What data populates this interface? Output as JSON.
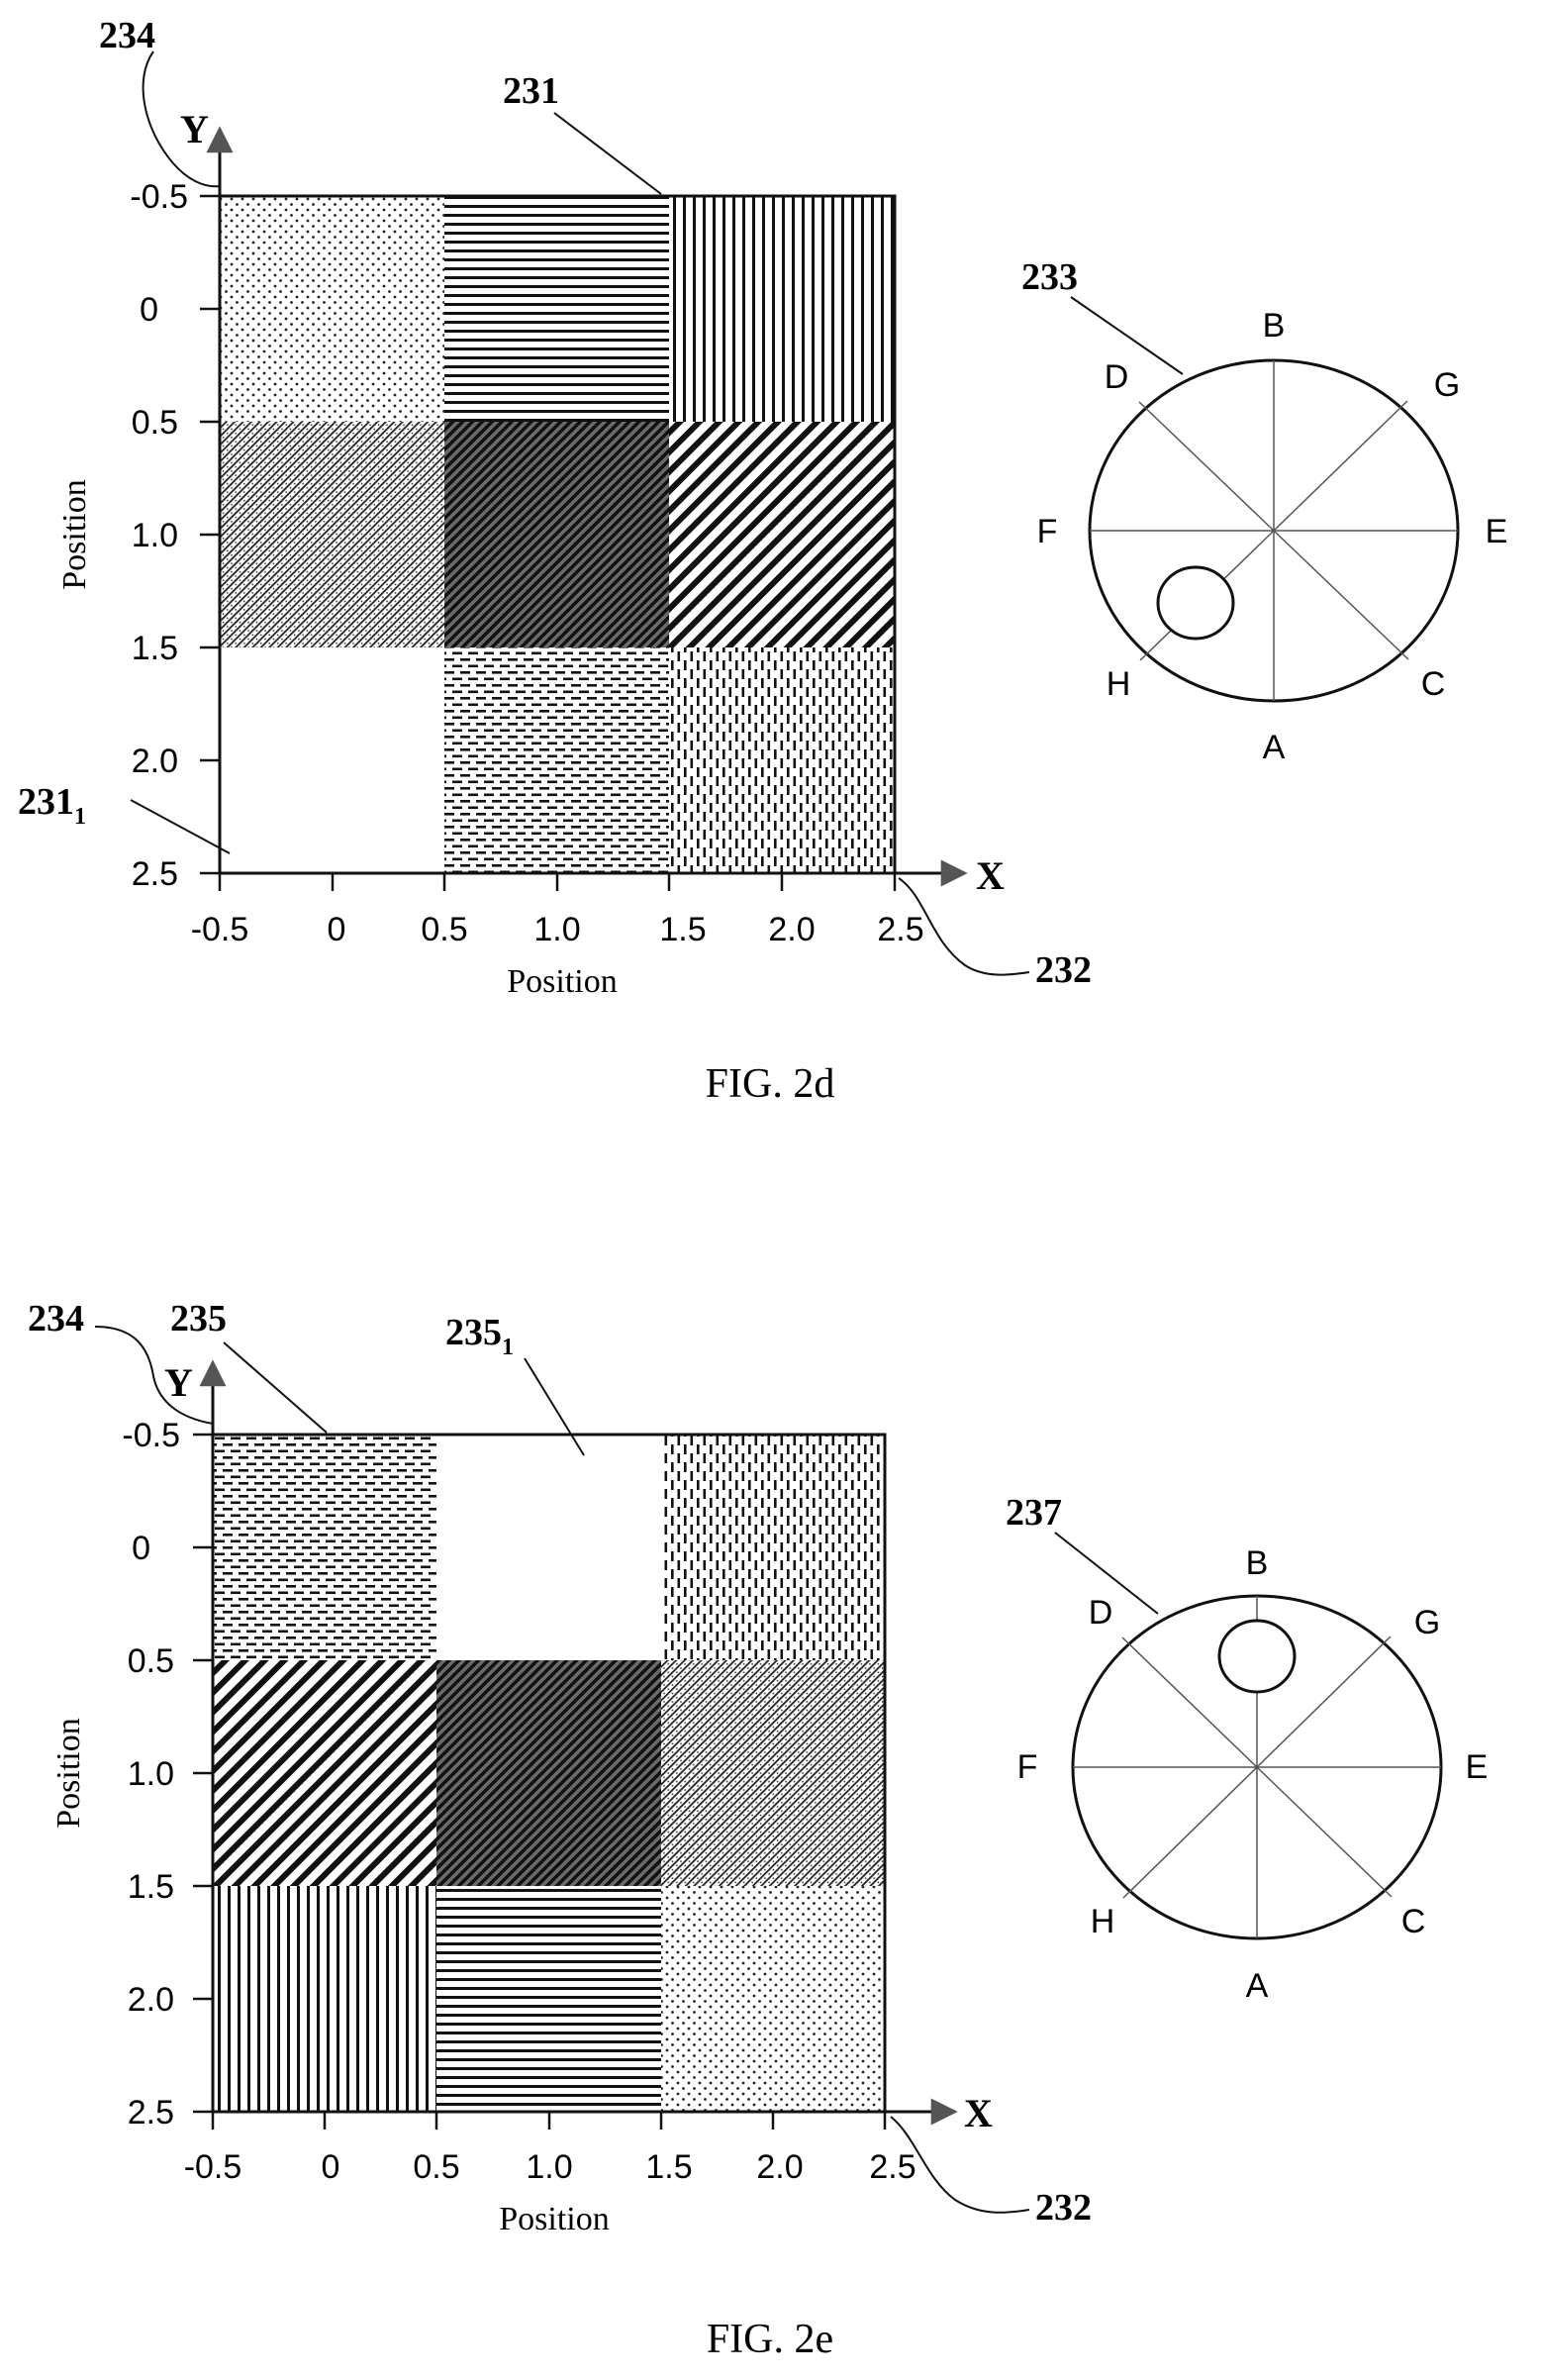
{
  "colors": {
    "ink": "#111111",
    "paper": "#ffffff"
  },
  "fig2d": {
    "caption": "FIG. 2d",
    "refs": {
      "y_axis": "234",
      "map": "231",
      "map_sub_main": "231",
      "map_sub_index": "1",
      "x_axis": "232",
      "pupil": "233"
    },
    "y_axis_letter": "Y",
    "x_axis_letter": "X",
    "x_title": "Position",
    "y_title": "Position",
    "y_ticks": [
      "-0.5",
      "0",
      "0.5",
      "1.0",
      "1.5",
      "2.0",
      "2.5"
    ],
    "x_ticks": [
      "-0.5",
      "0",
      "0.5",
      "1.0",
      "1.5",
      "2.0",
      "2.5"
    ],
    "grid_patterns": [
      [
        "fine-dots",
        "horizontal-lines",
        "vertical-lines"
      ],
      [
        "dense-diagonal",
        "dark-diagonal",
        "bold-diagonal"
      ],
      [
        "blank",
        "horizontal-dashes",
        "vertical-dashes"
      ]
    ],
    "pupil_points": {
      "top": "B",
      "top_right": "G",
      "right": "E",
      "bottom_right": "C",
      "bottom": "A",
      "bottom_left": "H",
      "left": "F",
      "top_left": "D"
    },
    "spot_direction": "H"
  },
  "fig2e": {
    "caption": "FIG. 2e",
    "refs": {
      "y_axis": "234",
      "map": "235",
      "map_sub_main": "235",
      "map_sub_index": "1",
      "x_axis": "232",
      "pupil": "237"
    },
    "y_axis_letter": "Y",
    "x_axis_letter": "X",
    "x_title": "Position",
    "y_title": "Position",
    "y_ticks": [
      "-0.5",
      "0",
      "0.5",
      "1.0",
      "1.5",
      "2.0",
      "2.5"
    ],
    "x_ticks": [
      "-0.5",
      "0",
      "0.5",
      "1.0",
      "1.5",
      "2.0",
      "2.5"
    ],
    "grid_patterns": [
      [
        "horizontal-dashes",
        "blank",
        "vertical-dashes"
      ],
      [
        "bold-diagonal",
        "dark-diagonal",
        "dense-diagonal"
      ],
      [
        "vertical-lines",
        "horizontal-lines",
        "fine-dots"
      ]
    ],
    "pupil_points": {
      "top": "B",
      "top_right": "G",
      "right": "E",
      "bottom_right": "C",
      "bottom": "A",
      "bottom_left": "H",
      "left": "F",
      "top_left": "D"
    },
    "spot_direction": "B"
  }
}
